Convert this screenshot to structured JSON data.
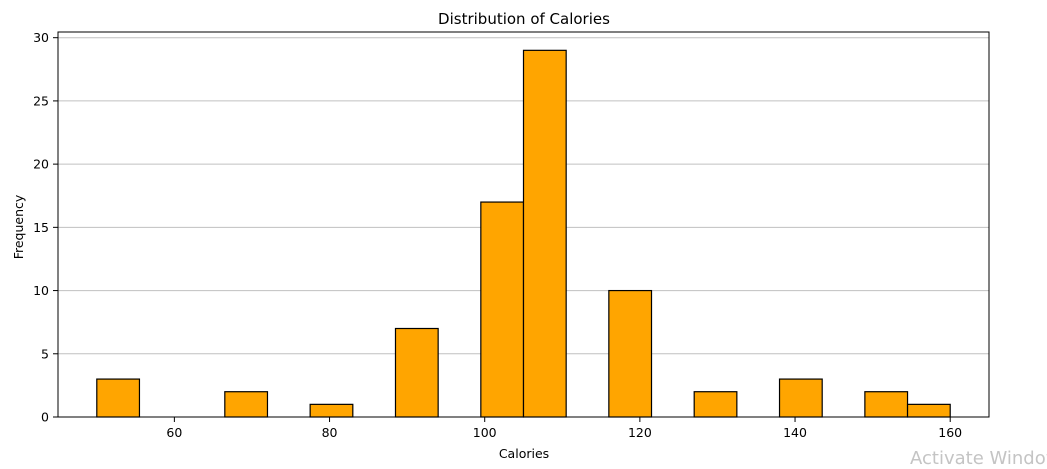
{
  "chart_data": {
    "type": "bar",
    "title": "Distribution of Calories",
    "xlabel": "Calories",
    "ylabel": "Frequency",
    "xlim": [
      45,
      165
    ],
    "ylim": [
      0,
      30.45
    ],
    "xticks": [
      60,
      80,
      100,
      120,
      140,
      160
    ],
    "yticks": [
      0,
      5,
      10,
      15,
      20,
      25,
      30
    ],
    "grid": "y",
    "bin_width": 5.5,
    "bins": [
      {
        "start": 50.0,
        "end": 55.5,
        "count": 3
      },
      {
        "start": 55.5,
        "end": 61.0,
        "count": 0
      },
      {
        "start": 61.0,
        "end": 66.5,
        "count": 0
      },
      {
        "start": 66.5,
        "end": 72.0,
        "count": 2
      },
      {
        "start": 72.0,
        "end": 77.5,
        "count": 0
      },
      {
        "start": 77.5,
        "end": 83.0,
        "count": 1
      },
      {
        "start": 83.0,
        "end": 88.5,
        "count": 0
      },
      {
        "start": 88.5,
        "end": 94.0,
        "count": 7
      },
      {
        "start": 94.0,
        "end": 99.5,
        "count": 0
      },
      {
        "start": 99.5,
        "end": 105.0,
        "count": 17
      },
      {
        "start": 105.0,
        "end": 110.5,
        "count": 29
      },
      {
        "start": 110.5,
        "end": 116.0,
        "count": 0
      },
      {
        "start": 116.0,
        "end": 121.5,
        "count": 10
      },
      {
        "start": 121.5,
        "end": 127.0,
        "count": 0
      },
      {
        "start": 127.0,
        "end": 132.5,
        "count": 2
      },
      {
        "start": 132.5,
        "end": 138.0,
        "count": 0
      },
      {
        "start": 138.0,
        "end": 143.5,
        "count": 3
      },
      {
        "start": 143.5,
        "end": 149.0,
        "count": 0
      },
      {
        "start": 149.0,
        "end": 154.5,
        "count": 2
      },
      {
        "start": 154.5,
        "end": 160.0,
        "count": 1
      }
    ],
    "bar_color": "#FFA500",
    "edge_color": "#000000",
    "grid_color": "#c0c0c0"
  },
  "watermark": "Activate Windows"
}
